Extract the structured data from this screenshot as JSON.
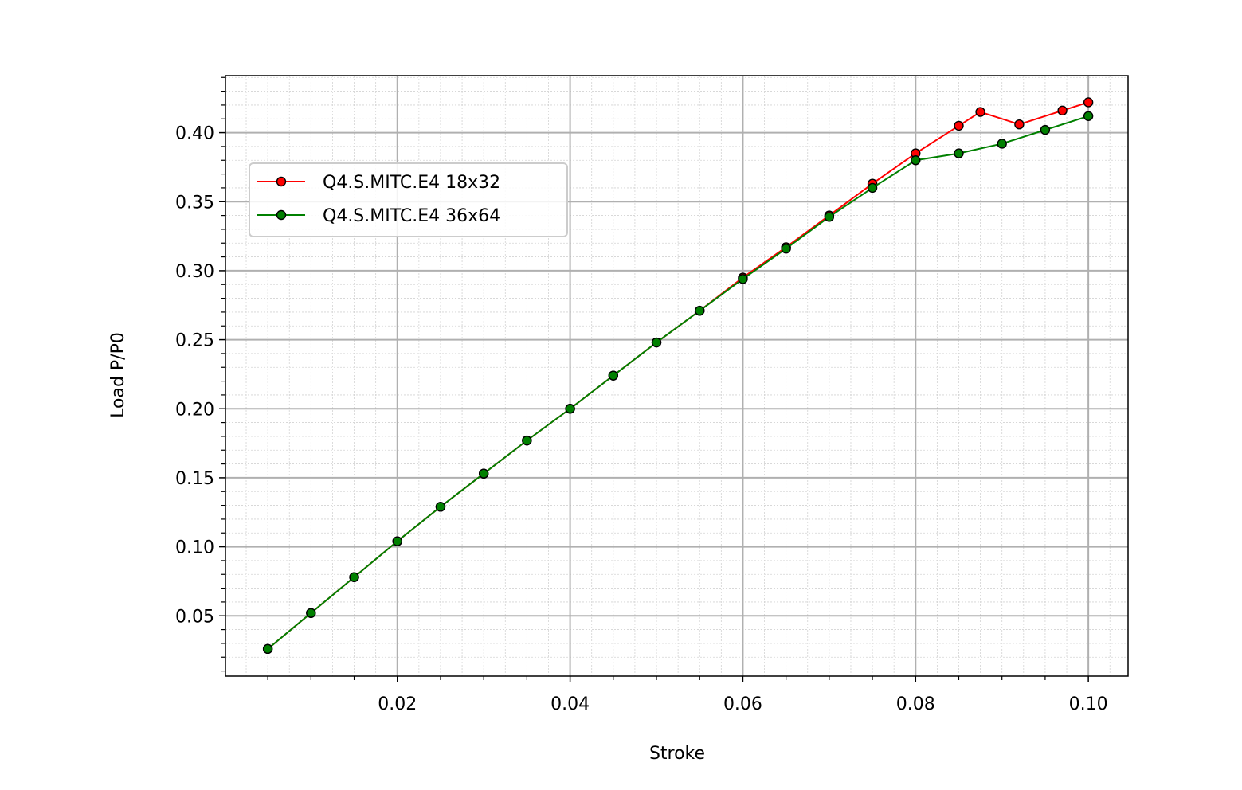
{
  "chart_data": {
    "type": "line",
    "title": "",
    "xlabel": "Stroke",
    "ylabel": "Load P/P0",
    "xlim": [
      0.0001,
      0.1046
    ],
    "ylim": [
      0.0063,
      0.4413
    ],
    "xticks": [
      0.02,
      0.04,
      0.06,
      0.08,
      0.1
    ],
    "xtick_labels": [
      "0.02",
      "0.04",
      "0.06",
      "0.08",
      "0.10"
    ],
    "yticks": [
      0.05,
      0.1,
      0.15,
      0.2,
      0.25,
      0.3,
      0.35,
      0.4
    ],
    "ytick_labels": [
      "0.05",
      "0.10",
      "0.15",
      "0.20",
      "0.25",
      "0.30",
      "0.35",
      "0.40"
    ],
    "grid": true,
    "minor_grid": true,
    "legend_position": "upper-left",
    "series": [
      {
        "name": "Q4.S.MITC.E4 18x32",
        "color": "#ff0000",
        "marker_color": "#ff0000",
        "x": [
          0.005,
          0.01,
          0.015,
          0.02,
          0.025,
          0.03,
          0.035,
          0.04,
          0.045,
          0.05,
          0.055,
          0.06,
          0.065,
          0.07,
          0.075,
          0.08,
          0.085,
          0.0875,
          0.092,
          0.097,
          0.1
        ],
        "y": [
          0.026,
          0.052,
          0.078,
          0.104,
          0.129,
          0.153,
          0.177,
          0.2,
          0.224,
          0.248,
          0.271,
          0.295,
          0.317,
          0.34,
          0.363,
          0.385,
          0.405,
          0.415,
          0.406,
          0.416,
          0.422
        ]
      },
      {
        "name": "Q4.S.MITC.E4 36x64",
        "color": "#008000",
        "marker_color": "#008000",
        "x": [
          0.005,
          0.01,
          0.015,
          0.02,
          0.025,
          0.03,
          0.035,
          0.04,
          0.045,
          0.05,
          0.055,
          0.06,
          0.065,
          0.07,
          0.075,
          0.08,
          0.085,
          0.09,
          0.095,
          0.1
        ],
        "y": [
          0.026,
          0.052,
          0.078,
          0.104,
          0.129,
          0.153,
          0.177,
          0.2,
          0.224,
          0.248,
          0.271,
          0.294,
          0.316,
          0.339,
          0.36,
          0.38,
          0.385,
          0.392,
          0.402,
          0.412
        ]
      }
    ]
  }
}
